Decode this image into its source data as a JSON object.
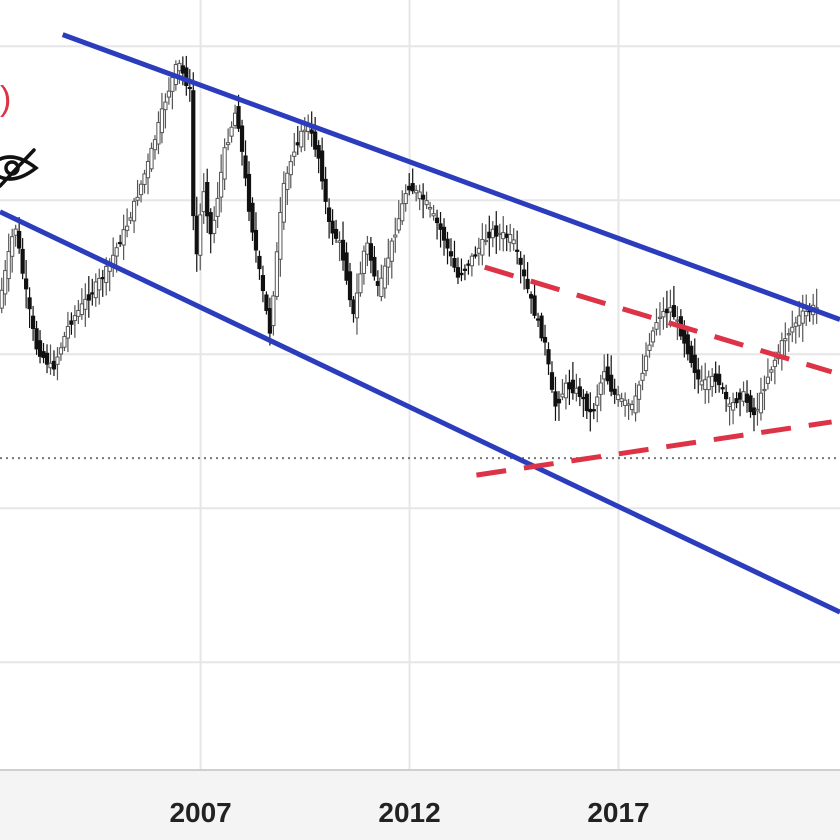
{
  "chart_data": {
    "type": "candlestick",
    "title": "",
    "xlabel": "",
    "ylabel": "",
    "x_range": [
      2002.2,
      2022.3
    ],
    "y_range": [
      0.0,
      1.0
    ],
    "grid": true,
    "x_ticks": [
      {
        "year": 2007,
        "label": "2007"
      },
      {
        "year": 2012,
        "label": "2012"
      },
      {
        "year": 2017,
        "label": "2017"
      }
    ],
    "horizontal_gridlines": [
      0.94,
      0.74,
      0.54,
      0.34,
      0.14
    ],
    "reference_level": 0.405,
    "price_path": [
      [
        2002.2,
        0.6
      ],
      [
        2002.6,
        0.71
      ],
      [
        2002.8,
        0.64
      ],
      [
        2003.1,
        0.55
      ],
      [
        2003.5,
        0.52
      ],
      [
        2003.9,
        0.58
      ],
      [
        2004.3,
        0.61
      ],
      [
        2004.8,
        0.65
      ],
      [
        2005.3,
        0.71
      ],
      [
        2005.8,
        0.79
      ],
      [
        2006.2,
        0.87
      ],
      [
        2006.5,
        0.92
      ],
      [
        2006.8,
        0.88
      ],
      [
        2006.9,
        0.64
      ],
      [
        2007.1,
        0.76
      ],
      [
        2007.3,
        0.69
      ],
      [
        2007.6,
        0.8
      ],
      [
        2007.9,
        0.86
      ],
      [
        2008.2,
        0.73
      ],
      [
        2008.5,
        0.63
      ],
      [
        2008.7,
        0.57
      ],
      [
        2009.0,
        0.75
      ],
      [
        2009.3,
        0.81
      ],
      [
        2009.6,
        0.84
      ],
      [
        2009.9,
        0.79
      ],
      [
        2010.1,
        0.71
      ],
      [
        2010.4,
        0.68
      ],
      [
        2010.7,
        0.59
      ],
      [
        2011.0,
        0.69
      ],
      [
        2011.3,
        0.62
      ],
      [
        2011.7,
        0.7
      ],
      [
        2012.0,
        0.76
      ],
      [
        2012.4,
        0.74
      ],
      [
        2012.8,
        0.7
      ],
      [
        2013.2,
        0.64
      ],
      [
        2013.6,
        0.67
      ],
      [
        2014.0,
        0.7
      ],
      [
        2014.5,
        0.69
      ],
      [
        2015.0,
        0.6
      ],
      [
        2015.3,
        0.55
      ],
      [
        2015.5,
        0.47
      ],
      [
        2015.8,
        0.5
      ],
      [
        2016.1,
        0.49
      ],
      [
        2016.4,
        0.46
      ],
      [
        2016.7,
        0.52
      ],
      [
        2016.9,
        0.49
      ],
      [
        2017.1,
        0.48
      ],
      [
        2017.4,
        0.47
      ],
      [
        2017.8,
        0.56
      ],
      [
        2018.0,
        0.59
      ],
      [
        2018.3,
        0.6
      ],
      [
        2018.6,
        0.56
      ],
      [
        2019.0,
        0.5
      ],
      [
        2019.4,
        0.51
      ],
      [
        2019.7,
        0.47
      ],
      [
        2020.0,
        0.49
      ],
      [
        2020.3,
        0.46
      ],
      [
        2020.6,
        0.51
      ],
      [
        2021.0,
        0.56
      ],
      [
        2021.4,
        0.59
      ],
      [
        2021.7,
        0.6
      ]
    ],
    "channel_lines": [
      {
        "color": "#2b3dbd",
        "dashed": false,
        "from": [
          2003.7,
          0.955
        ],
        "to": [
          2022.3,
          0.585
        ]
      },
      {
        "color": "#2b3dbd",
        "dashed": false,
        "from": [
          2002.2,
          0.725
        ],
        "to": [
          2022.3,
          0.205
        ]
      },
      {
        "color": "#dc3347",
        "dashed": true,
        "from": [
          2013.8,
          0.653
        ],
        "to": [
          2022.1,
          0.517
        ]
      },
      {
        "color": "#dc3347",
        "dashed": true,
        "from": [
          2013.6,
          0.383
        ],
        "to": [
          2022.1,
          0.452
        ]
      }
    ]
  },
  "icons": {
    "eye_off": "eye-off-icon",
    "red_parenthesis": ")"
  },
  "colors": {
    "channel_blue": "#2b3dbd",
    "pattern_red": "#dc3347",
    "candle_up": "#555555",
    "candle_down": "#111111",
    "grid": "#e6e6e6",
    "dotted_reference": "#777777"
  }
}
